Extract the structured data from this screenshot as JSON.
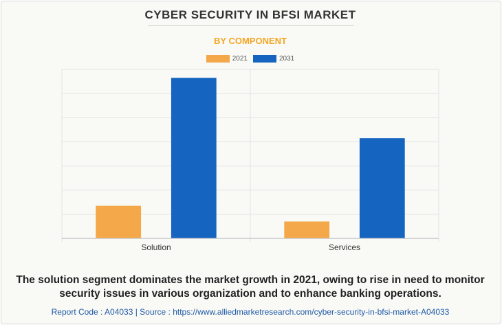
{
  "header": {
    "title": "CYBER SECURITY IN BFSI MARKET",
    "subtitle": "BY COMPONENT"
  },
  "colors": {
    "series_2021": "#f4a849",
    "series_2031": "#1565c0",
    "grid": "#e3e3e3",
    "axis": "#c8c8c8"
  },
  "chart_data": {
    "type": "bar",
    "title": "CYBER SECURITY IN BFSI MARKET",
    "subtitle": "BY COMPONENT",
    "categories": [
      "Solution",
      "Services"
    ],
    "series": [
      {
        "name": "2021",
        "values": [
          13.5,
          7
        ]
      },
      {
        "name": "2031",
        "values": [
          66.5,
          41.5
        ]
      }
    ],
    "ylim": [
      0,
      70
    ],
    "grid": true,
    "legend": "top-center",
    "xlabel": "",
    "ylabel": ""
  },
  "caption": {
    "line1": "The solution segment dominates the market growth in 2021, owing to rise in need to monitor",
    "line2": "security issues in various organization and to enhance banking operations."
  },
  "footer": {
    "text": "Report Code : A04033  |  Source : https://www.alliedmarketresearch.com/cyber-security-in-bfsi-market-A04033"
  }
}
